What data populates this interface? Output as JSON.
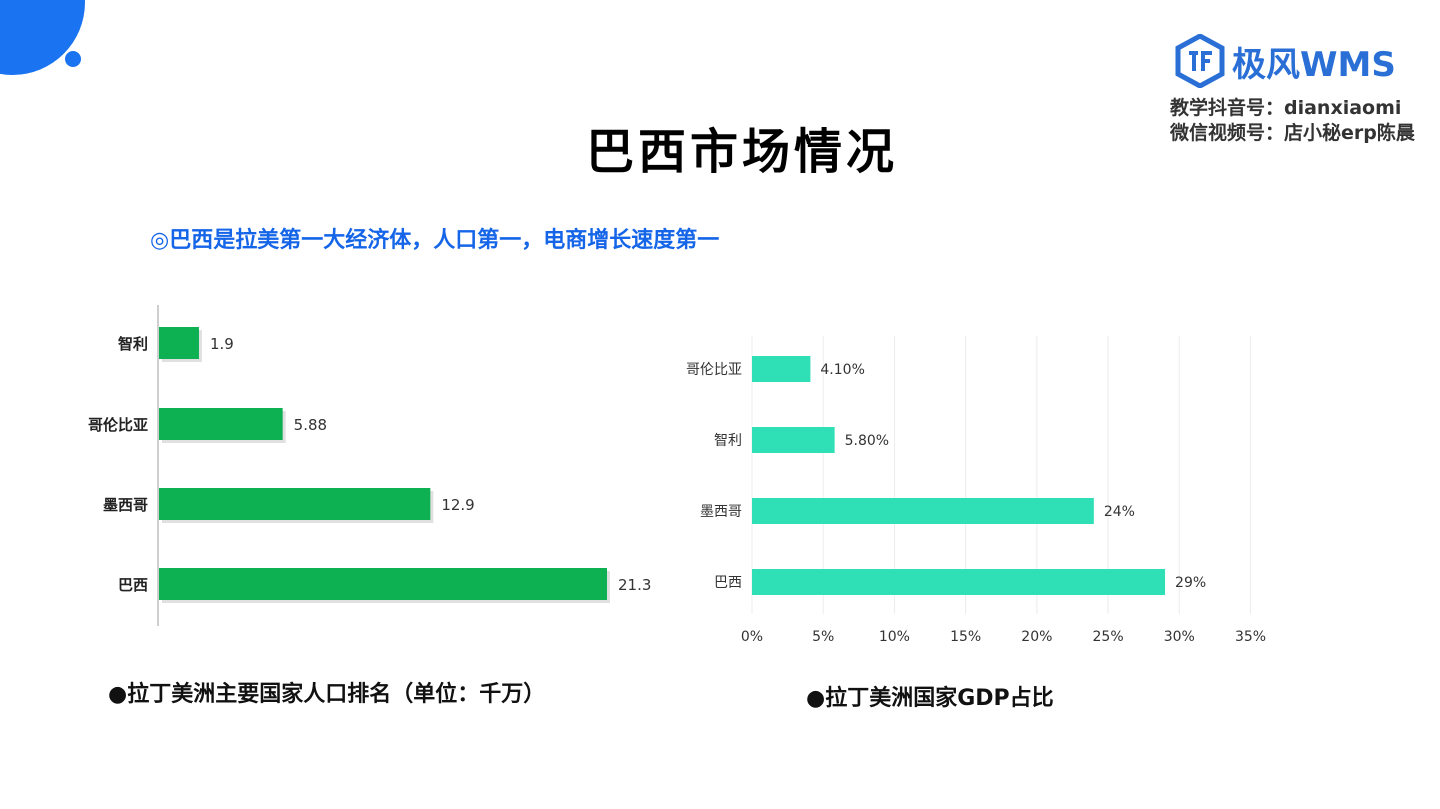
{
  "slide": {
    "title": "巴西市场情况",
    "subtitle": "◎巴西是拉美第一大经济体，人口第一，电商增长速度第一"
  },
  "brand": {
    "logo_text": "极风WMS",
    "contact_line1": "教学抖音号：dianxiaomi",
    "contact_line2": "微信视频号：店小秘erp陈晨",
    "accent_color": "#1a73f0"
  },
  "captions": {
    "population": "●拉丁美洲主要国家人口排名（单位：千万）",
    "gdp": "●拉丁美洲国家GDP占比"
  },
  "chart_data": [
    {
      "type": "bar",
      "orientation": "horizontal",
      "categories": [
        "智利",
        "哥伦比亚",
        "墨西哥",
        "巴西"
      ],
      "values": [
        1.9,
        5.88,
        12.9,
        21.3
      ],
      "value_labels": [
        "1.9",
        "5.88",
        "12.9",
        "21.3"
      ],
      "xlim": [
        0,
        21.3
      ],
      "color": "#0db152",
      "grid": false
    },
    {
      "type": "bar",
      "orientation": "horizontal",
      "categories": [
        "哥伦比亚",
        "智利",
        "墨西哥",
        "巴西"
      ],
      "values": [
        4.1,
        5.8,
        24,
        29
      ],
      "value_labels": [
        "4.10%",
        "5.80%",
        "24%",
        "29%"
      ],
      "xticks": [
        "0%",
        "5%",
        "10%",
        "15%",
        "20%",
        "25%",
        "30%",
        "35%"
      ],
      "xlim": [
        0,
        35
      ],
      "color": "#2fe0b6",
      "grid": true
    }
  ]
}
